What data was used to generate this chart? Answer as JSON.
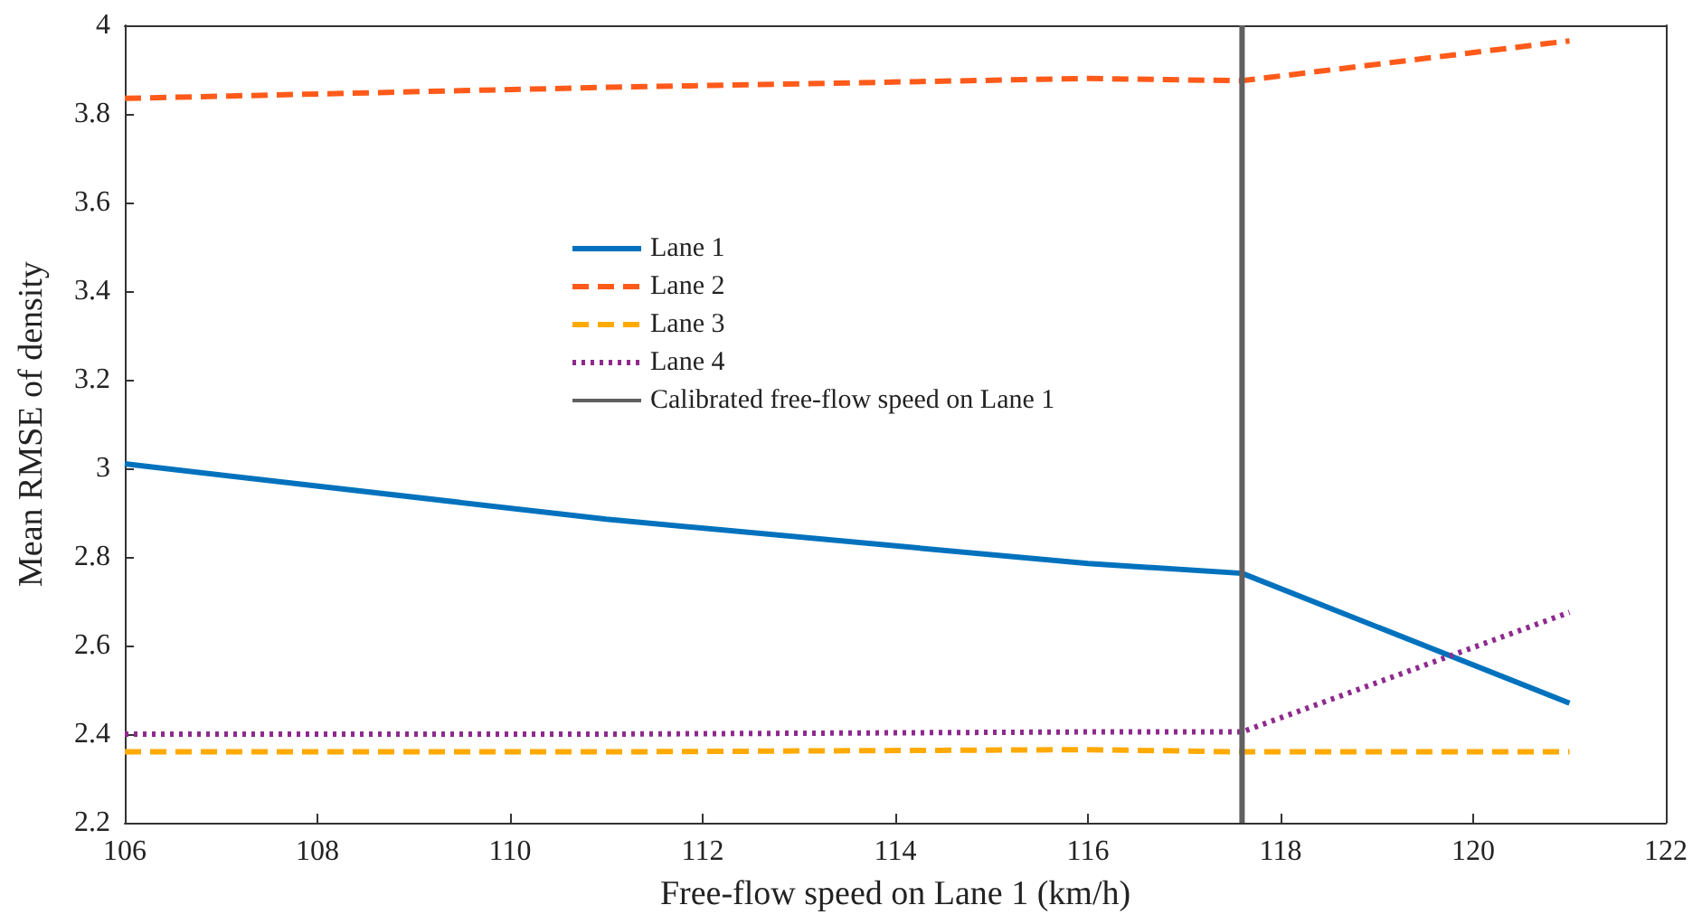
{
  "chart_data": {
    "type": "line",
    "xlabel": "Free-flow speed on Lane 1 (km/h)",
    "ylabel": "Mean RMSE of density",
    "x": [
      106,
      111,
      116,
      117.6,
      121
    ],
    "series": [
      {
        "name": "Lane 1",
        "color": "#0072bd",
        "line_style": "solid",
        "values": [
          3.01,
          2.885,
          2.785,
          2.763,
          2.47
        ]
      },
      {
        "name": "Lane 2",
        "color": "#ff5a1a",
        "line_style": "dashed",
        "values": [
          3.835,
          3.86,
          3.88,
          3.875,
          3.965
        ]
      },
      {
        "name": "Lane 3",
        "color": "#ffaa00",
        "line_style": "dashed",
        "values": [
          2.36,
          2.36,
          2.365,
          2.36,
          2.36
        ]
      },
      {
        "name": "Lane 4",
        "color": "#8e2a8e",
        "line_style": "dotted",
        "values": [
          2.4,
          2.4,
          2.405,
          2.405,
          2.675
        ]
      },
      {
        "name": "Calibrated free-flow speed on Lane 1",
        "type": "line",
        "color": "#606060",
        "line_style": "solid",
        "x": [
          117.6,
          117.6
        ],
        "values": [
          2.2,
          4
        ]
      }
    ],
    "xlim": [
      106,
      122
    ],
    "xticks": [
      106,
      108,
      110,
      112,
      114,
      116,
      118,
      120,
      122
    ],
    "ylim": [
      2.2,
      4
    ],
    "yticks": [
      2.2,
      2.4,
      2.6,
      2.8,
      3,
      3.2,
      3.4,
      3.6,
      3.8,
      4
    ],
    "grid": false,
    "legend": "left",
    "marker": "none"
  }
}
